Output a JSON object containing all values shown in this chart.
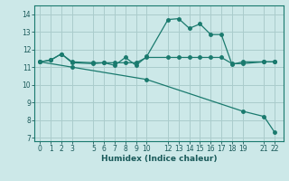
{
  "title": "",
  "xlabel": "Humidex (Indice chaleur)",
  "bg_color": "#cce8e8",
  "grid_color": "#aacccc",
  "line_color": "#1a7a6e",
  "xlim": [
    -0.5,
    22.8
  ],
  "ylim": [
    6.8,
    14.5
  ],
  "yticks": [
    7,
    8,
    9,
    10,
    11,
    12,
    13,
    14
  ],
  "xticks": [
    0,
    1,
    2,
    3,
    5,
    6,
    7,
    8,
    9,
    10,
    12,
    13,
    14,
    15,
    16,
    17,
    18,
    19,
    21,
    22
  ],
  "line1_x": [
    0,
    1,
    2,
    3,
    5,
    6,
    7,
    8,
    9,
    10,
    12,
    13,
    14,
    15,
    16,
    17,
    18,
    19,
    21,
    22
  ],
  "line1_y": [
    11.3,
    11.4,
    11.75,
    11.3,
    11.25,
    11.25,
    11.1,
    11.55,
    11.1,
    11.6,
    13.7,
    13.75,
    13.2,
    13.45,
    12.85,
    12.85,
    11.15,
    11.3,
    11.3,
    11.3
  ],
  "line2_x": [
    0,
    1,
    2,
    3,
    5,
    6,
    7,
    8,
    9,
    10,
    12,
    13,
    14,
    15,
    16,
    17,
    18,
    19,
    21,
    22
  ],
  "line2_y": [
    11.3,
    11.4,
    11.75,
    11.25,
    11.2,
    11.25,
    11.25,
    11.25,
    11.25,
    11.55,
    11.55,
    11.55,
    11.55,
    11.55,
    11.55,
    11.55,
    11.2,
    11.2,
    11.3,
    11.3
  ],
  "line3_x": [
    0,
    3,
    10,
    19,
    21,
    22
  ],
  "line3_y": [
    11.3,
    11.0,
    10.3,
    8.5,
    8.2,
    7.3
  ],
  "marker_size": 2.5,
  "linewidth": 0.9,
  "tick_fontsize": 5.5,
  "xlabel_fontsize": 6.5
}
